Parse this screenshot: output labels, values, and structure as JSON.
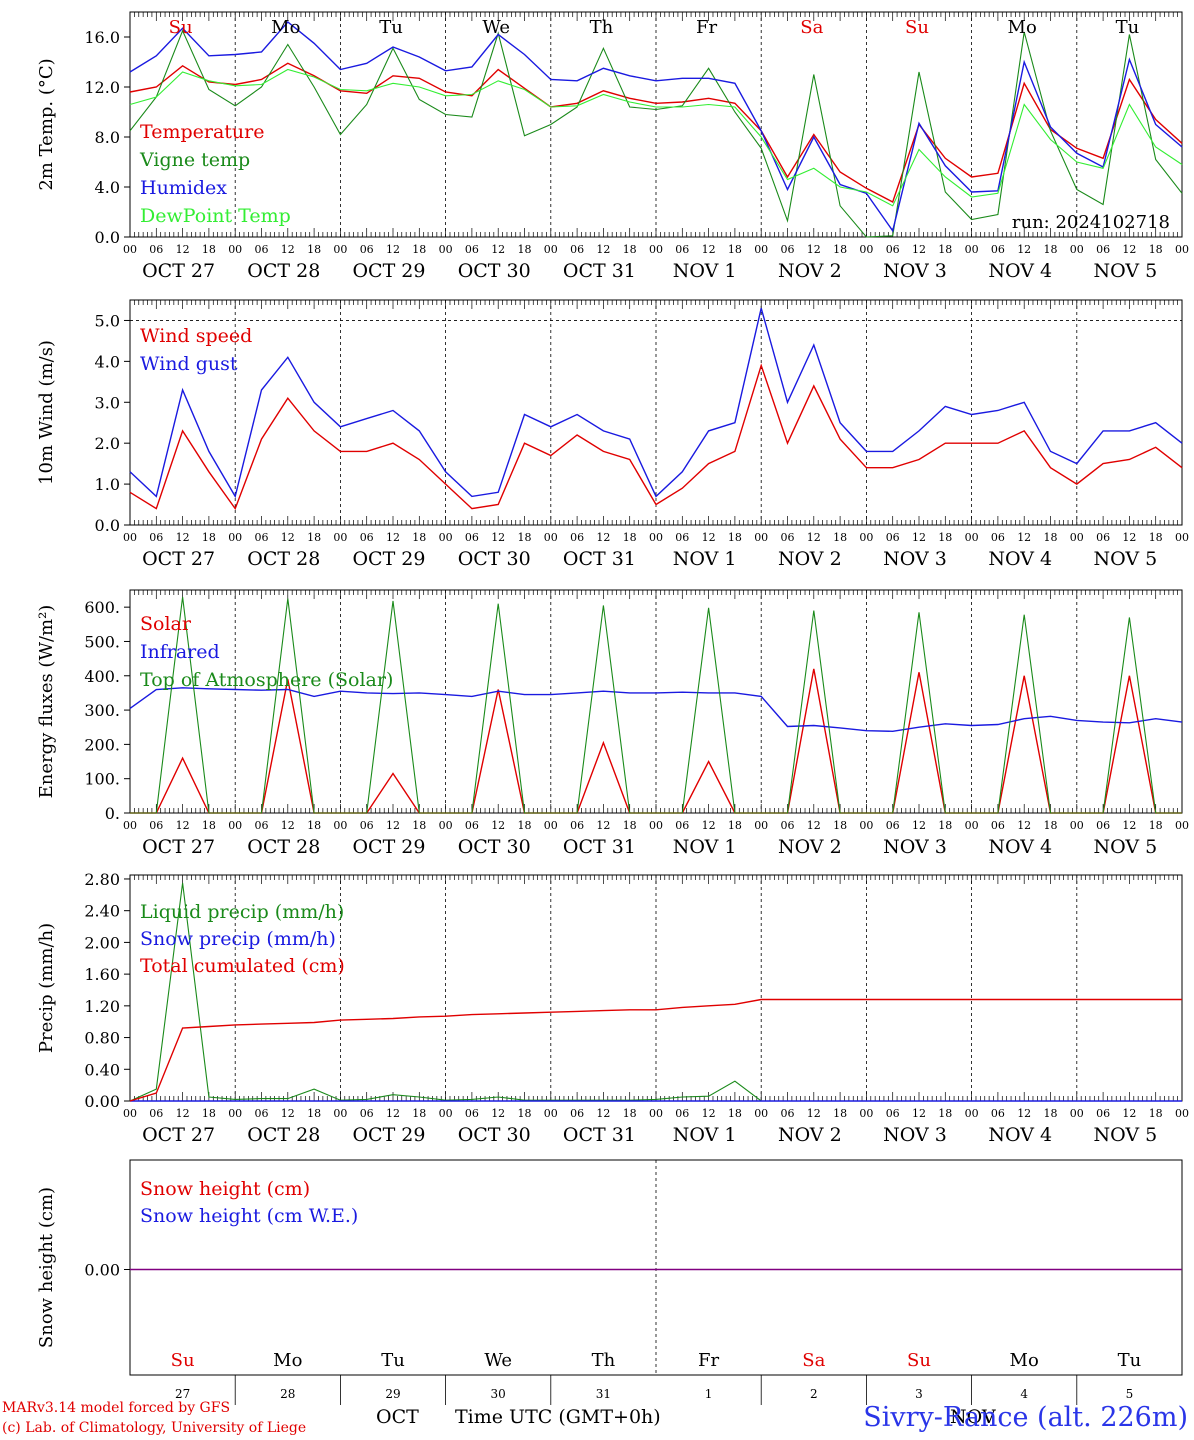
{
  "header": {
    "credit_line1": "MARv3.14 model forced by GFS",
    "credit_line2": "(c) Lab. of Climatology, University of Liege",
    "station": "Sivry-Rance (alt. 226m)",
    "xaxis_title": "Time UTC (GMT+0h)",
    "month_label_left": "OCT",
    "month_label_right": "NOV"
  },
  "colors": {
    "red": "#e00000",
    "green": "#1a8a1a",
    "blue": "#1a1ae0",
    "lightgreen": "#33ee33",
    "purple": "#800080",
    "weekend": "#e00000"
  },
  "chart_data": [
    {
      "type": "line",
      "ylabel": "2m Temp. (°C)",
      "ylim": [
        0,
        18
      ],
      "yticks": [
        "0.0",
        "4.0",
        "8.0",
        "12.0",
        "16.0"
      ],
      "annotation": "run: 2024102718",
      "weekdays": [
        "Su",
        "Mo",
        "Tu",
        "We",
        "Th",
        "Fr",
        "Sa",
        "Su",
        "Mo",
        "Tu"
      ],
      "x": [
        "00",
        "06",
        "12",
        "18",
        "00",
        "06",
        "12",
        "18",
        "00",
        "06",
        "12",
        "18",
        "00",
        "06",
        "12",
        "18",
        "00",
        "06",
        "12",
        "18",
        "00",
        "06",
        "12",
        "18",
        "00",
        "06",
        "12",
        "18",
        "00",
        "06",
        "12",
        "18",
        "00",
        "06",
        "12",
        "18",
        "00",
        "06",
        "12",
        "18",
        "00"
      ],
      "series": [
        {
          "name": "Temperature",
          "color": "red",
          "values": [
            11.6,
            12.0,
            13.7,
            12.4,
            12.2,
            12.6,
            13.9,
            12.9,
            11.7,
            11.5,
            12.9,
            12.7,
            11.6,
            11.3,
            13.4,
            11.9,
            10.4,
            10.7,
            11.7,
            11.1,
            10.7,
            10.8,
            11.1,
            10.7,
            8.5,
            4.8,
            8.2,
            5.2,
            3.9,
            2.8,
            9.0,
            6.3,
            4.8,
            5.1,
            12.3,
            8.6,
            7.1,
            6.3,
            12.6,
            9.4,
            7.5
          ]
        },
        {
          "name": "Vigne temp",
          "color": "green",
          "values": [
            8.5,
            11.2,
            16.5,
            11.8,
            10.5,
            12.0,
            15.4,
            12.0,
            8.2,
            10.6,
            15.1,
            11.0,
            9.8,
            9.6,
            16.3,
            8.1,
            9.0,
            10.4,
            15.1,
            10.4,
            10.2,
            10.5,
            13.5,
            10.0,
            7.1,
            1.3,
            13.0,
            2.5,
            0.0,
            0.1,
            13.2,
            3.6,
            1.4,
            1.8,
            16.4,
            8.5,
            3.8,
            2.6,
            16.2,
            6.2,
            3.5
          ]
        },
        {
          "name": "Humidex",
          "color": "blue",
          "values": [
            13.2,
            14.5,
            16.7,
            14.5,
            14.6,
            14.8,
            17.2,
            15.5,
            13.4,
            13.9,
            15.2,
            14.4,
            13.3,
            13.6,
            16.2,
            14.6,
            12.6,
            12.5,
            13.5,
            12.9,
            12.5,
            12.7,
            12.7,
            12.3,
            8.5,
            3.8,
            8.0,
            4.2,
            3.5,
            0.5,
            9.1,
            5.7,
            3.6,
            3.7,
            14.0,
            8.8,
            6.7,
            5.6,
            14.2,
            9.0,
            7.2
          ]
        },
        {
          "name": "DewPoint Temp",
          "color": "lightgreen",
          "values": [
            10.6,
            11.2,
            13.2,
            12.5,
            12.1,
            12.2,
            13.4,
            12.8,
            11.8,
            11.7,
            12.3,
            12.0,
            11.3,
            11.4,
            12.5,
            11.8,
            10.4,
            10.5,
            11.4,
            10.8,
            10.4,
            10.4,
            10.6,
            10.4,
            8.0,
            4.6,
            5.5,
            4.0,
            3.6,
            2.5,
            7.0,
            4.8,
            3.2,
            3.5,
            10.6,
            7.8,
            6.0,
            5.5,
            10.6,
            7.2,
            5.8
          ]
        }
      ]
    },
    {
      "type": "line",
      "ylabel": "10m Wind (m/s)",
      "ylim": [
        0,
        5.5
      ],
      "yticks": [
        "0.0",
        "1.0",
        "2.0",
        "3.0",
        "4.0",
        "5.0"
      ],
      "series": [
        {
          "name": "Wind speed",
          "color": "red",
          "values": [
            0.8,
            0.4,
            2.3,
            1.3,
            0.4,
            2.1,
            3.1,
            2.3,
            1.8,
            1.8,
            2.0,
            1.6,
            1.0,
            0.4,
            0.5,
            2.0,
            1.7,
            2.2,
            1.8,
            1.6,
            0.5,
            0.9,
            1.5,
            1.8,
            3.9,
            2.0,
            3.4,
            2.1,
            1.4,
            1.4,
            1.6,
            2.0,
            2.0,
            2.0,
            2.3,
            1.4,
            1.0,
            1.5,
            1.6,
            1.9,
            1.4
          ]
        },
        {
          "name": "Wind gust",
          "color": "blue",
          "values": [
            1.3,
            0.7,
            3.3,
            1.8,
            0.7,
            3.3,
            4.1,
            3.0,
            2.4,
            2.6,
            2.8,
            2.3,
            1.3,
            0.7,
            0.8,
            2.7,
            2.4,
            2.7,
            2.3,
            2.1,
            0.7,
            1.3,
            2.3,
            2.5,
            5.3,
            3.0,
            4.4,
            2.5,
            1.8,
            1.8,
            2.3,
            2.9,
            2.7,
            2.8,
            3.0,
            1.8,
            1.5,
            2.3,
            2.3,
            2.5,
            2.0
          ]
        }
      ]
    },
    {
      "type": "line",
      "ylabel": "Energy fluxes (W/m²)",
      "ylim": [
        0,
        650
      ],
      "yticks": [
        "0.",
        "100.",
        "200.",
        "300.",
        "400.",
        "500.",
        "600."
      ],
      "series": [
        {
          "name": "Solar",
          "color": "red",
          "values": [
            0,
            0,
            160,
            0,
            0,
            0,
            390,
            0,
            0,
            0,
            115,
            0,
            0,
            0,
            360,
            0,
            0,
            0,
            205,
            0,
            0,
            0,
            150,
            0,
            0,
            0,
            420,
            0,
            0,
            0,
            410,
            0,
            0,
            0,
            400,
            0,
            0,
            0,
            400,
            0,
            0
          ]
        },
        {
          "name": "Infrared",
          "color": "blue",
          "values": [
            305,
            360,
            365,
            362,
            360,
            358,
            360,
            340,
            355,
            350,
            348,
            350,
            345,
            340,
            355,
            345,
            345,
            350,
            355,
            350,
            350,
            352,
            350,
            350,
            340,
            252,
            255,
            248,
            240,
            238,
            250,
            260,
            255,
            258,
            275,
            282,
            270,
            265,
            263,
            275,
            265
          ]
        },
        {
          "name": "Top of Atmosphere (Solar)",
          "color": "green",
          "values": [
            0,
            0,
            630,
            0,
            0,
            0,
            625,
            0,
            0,
            0,
            618,
            0,
            0,
            0,
            610,
            0,
            0,
            0,
            605,
            0,
            0,
            0,
            598,
            0,
            0,
            0,
            590,
            0,
            0,
            0,
            585,
            0,
            0,
            0,
            578,
            0,
            0,
            0,
            570,
            0,
            0
          ]
        }
      ]
    },
    {
      "type": "line",
      "ylabel": "Precip (mm/h)",
      "ylim": [
        0,
        2.85
      ],
      "yticks": [
        "0.00",
        "0.40",
        "0.80",
        "1.20",
        "1.60",
        "2.00",
        "2.40",
        "2.80"
      ],
      "series": [
        {
          "name": "Liquid precip (mm/h)",
          "color": "green",
          "values": [
            0,
            0.15,
            2.75,
            0.05,
            0.02,
            0.03,
            0.03,
            0.15,
            0.01,
            0.02,
            0.08,
            0.05,
            0.01,
            0.02,
            0.05,
            0.01,
            0.01,
            0.01,
            0.01,
            0.01,
            0.02,
            0.05,
            0.06,
            0.25,
            0,
            0,
            0,
            0,
            0,
            0,
            0,
            0,
            0,
            0,
            0,
            0,
            0,
            0,
            0,
            0,
            0
          ]
        },
        {
          "name": "Snow precip (mm/h)",
          "color": "blue",
          "values": [
            0,
            0,
            0,
            0,
            0,
            0,
            0,
            0,
            0,
            0,
            0,
            0,
            0,
            0,
            0,
            0,
            0,
            0,
            0,
            0,
            0,
            0,
            0,
            0,
            0,
            0,
            0,
            0,
            0,
            0,
            0,
            0,
            0,
            0,
            0,
            0,
            0,
            0,
            0,
            0,
            0
          ]
        },
        {
          "name": "Total cumulated (cm)",
          "color": "red",
          "values": [
            0,
            0.1,
            0.92,
            0.94,
            0.96,
            0.97,
            0.98,
            0.99,
            1.02,
            1.03,
            1.04,
            1.06,
            1.07,
            1.09,
            1.1,
            1.11,
            1.12,
            1.13,
            1.14,
            1.15,
            1.15,
            1.18,
            1.2,
            1.22,
            1.28,
            1.28,
            1.28,
            1.28,
            1.28,
            1.28,
            1.28,
            1.28,
            1.28,
            1.28,
            1.28,
            1.28,
            1.28,
            1.28,
            1.28,
            1.28,
            1.28
          ]
        }
      ]
    },
    {
      "type": "line",
      "ylabel": "Snow height (cm)",
      "yticks": [
        "0.00"
      ],
      "series": [
        {
          "name": "Snow height (cm)",
          "color": "red",
          "values": [
            0,
            0
          ]
        },
        {
          "name": "Snow height (cm W.E.)",
          "color": "blue",
          "values": [
            0,
            0
          ]
        }
      ],
      "bottom_weekdays": [
        "Su",
        "Mo",
        "Tu",
        "We",
        "Th",
        "Fr",
        "Sa",
        "Su",
        "Mo",
        "Tu"
      ],
      "bottom_daynums": [
        "27",
        "28",
        "29",
        "30",
        "31",
        "1",
        "2",
        "3",
        "4",
        "5"
      ]
    }
  ],
  "date_labels": [
    "OCT 27",
    "OCT 28",
    "OCT 29",
    "OCT 30",
    "OCT 31",
    "NOV 1",
    "NOV 2",
    "NOV 3",
    "NOV 4",
    "NOV 5"
  ],
  "weekend_days": [
    "Su",
    "Sa"
  ]
}
